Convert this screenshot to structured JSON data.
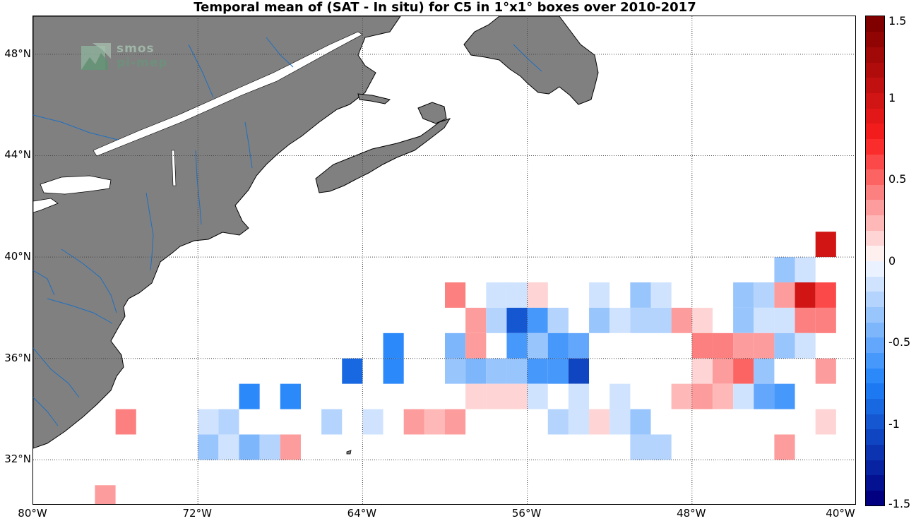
{
  "title": "Temporal mean of (SAT - In situ) for C5 in 1°x1° boxes over 2010-2017",
  "logo": {
    "line1": "smos",
    "line2": "pi-mep"
  },
  "map": {
    "lon_range": [
      -80,
      -40
    ],
    "lat_range": [
      30.2,
      49.5
    ],
    "land_color": "#808080",
    "river_color": "#1f6fc0",
    "grid_style": "dotted",
    "lat_labels": [
      {
        "lat": 48,
        "text": "48°N"
      },
      {
        "lat": 44,
        "text": "44°N"
      },
      {
        "lat": 40,
        "text": "40°N"
      },
      {
        "lat": 36,
        "text": "36°N"
      },
      {
        "lat": 32,
        "text": "32°N"
      }
    ],
    "lon_labels": [
      {
        "lon": -80,
        "text": "80°W"
      },
      {
        "lon": -72,
        "text": "72°W"
      },
      {
        "lon": -64,
        "text": "64°W"
      },
      {
        "lon": -56,
        "text": "56°W"
      },
      {
        "lon": -48,
        "text": "48°W"
      },
      {
        "lon": -40,
        "text": "40°W"
      }
    ],
    "cells": [
      {
        "lon": -41,
        "lat": 41,
        "value": 0.95
      },
      {
        "lon": -43,
        "lat": 40,
        "value": -0.3
      },
      {
        "lon": -42,
        "lat": 40,
        "value": -0.1
      },
      {
        "lon": -59,
        "lat": 39,
        "value": 0.4
      },
      {
        "lon": -57,
        "lat": 39,
        "value": -0.1
      },
      {
        "lon": -56,
        "lat": 39,
        "value": -0.1
      },
      {
        "lon": -55,
        "lat": 39,
        "value": 0.15
      },
      {
        "lon": -52,
        "lat": 39,
        "value": -0.1
      },
      {
        "lon": -50,
        "lat": 39,
        "value": -0.3
      },
      {
        "lon": -49,
        "lat": 39,
        "value": -0.1
      },
      {
        "lon": -45,
        "lat": 39,
        "value": -0.35
      },
      {
        "lon": -44,
        "lat": 39,
        "value": -0.25
      },
      {
        "lon": -43,
        "lat": 39,
        "value": 0.35
      },
      {
        "lon": -42,
        "lat": 39,
        "value": 0.95
      },
      {
        "lon": -41,
        "lat": 39,
        "value": 0.6
      },
      {
        "lon": -58,
        "lat": 38,
        "value": 0.3
      },
      {
        "lon": -57,
        "lat": 38,
        "value": -0.25
      },
      {
        "lon": -56,
        "lat": 38,
        "value": -1.0
      },
      {
        "lon": -55,
        "lat": 38,
        "value": -0.6
      },
      {
        "lon": -54,
        "lat": 38,
        "value": -0.25
      },
      {
        "lon": -52,
        "lat": 38,
        "value": -0.3
      },
      {
        "lon": -51,
        "lat": 38,
        "value": -0.1
      },
      {
        "lon": -50,
        "lat": 38,
        "value": -0.2
      },
      {
        "lon": -49,
        "lat": 38,
        "value": -0.2
      },
      {
        "lon": -48,
        "lat": 38,
        "value": 0.3
      },
      {
        "lon": -47,
        "lat": 38,
        "value": 0.15
      },
      {
        "lon": -45,
        "lat": 38,
        "value": -0.35
      },
      {
        "lon": -44,
        "lat": 38,
        "value": -0.1
      },
      {
        "lon": -43,
        "lat": 38,
        "value": -0.1
      },
      {
        "lon": -42,
        "lat": 38,
        "value": 0.45
      },
      {
        "lon": -41,
        "lat": 38,
        "value": 0.45
      },
      {
        "lon": -62,
        "lat": 37,
        "value": -0.7
      },
      {
        "lon": -59,
        "lat": 37,
        "value": -0.45
      },
      {
        "lon": -58,
        "lat": 37,
        "value": 0.3
      },
      {
        "lon": -56,
        "lat": 37,
        "value": -0.6
      },
      {
        "lon": -55,
        "lat": 37,
        "value": -0.3
      },
      {
        "lon": -54,
        "lat": 37,
        "value": -0.6
      },
      {
        "lon": -53,
        "lat": 37,
        "value": -0.5
      },
      {
        "lon": -47,
        "lat": 37,
        "value": 0.45
      },
      {
        "lon": -46,
        "lat": 37,
        "value": 0.45
      },
      {
        "lon": -45,
        "lat": 37,
        "value": 0.35
      },
      {
        "lon": -44,
        "lat": 37,
        "value": 0.35
      },
      {
        "lon": -43,
        "lat": 37,
        "value": -0.35
      },
      {
        "lon": -42,
        "lat": 37,
        "value": -0.1
      },
      {
        "lon": -64,
        "lat": 36,
        "value": -0.9
      },
      {
        "lon": -62,
        "lat": 36,
        "value": -0.7
      },
      {
        "lon": -59,
        "lat": 36,
        "value": -0.3
      },
      {
        "lon": -58,
        "lat": 36,
        "value": -0.45
      },
      {
        "lon": -57,
        "lat": 36,
        "value": -0.35
      },
      {
        "lon": -56,
        "lat": 36,
        "value": -0.35
      },
      {
        "lon": -55,
        "lat": 36,
        "value": -0.6
      },
      {
        "lon": -54,
        "lat": 36,
        "value": -0.6
      },
      {
        "lon": -53,
        "lat": 36,
        "value": -1.1
      },
      {
        "lon": -47,
        "lat": 36,
        "value": 0.15
      },
      {
        "lon": -46,
        "lat": 36,
        "value": 0.3
      },
      {
        "lon": -45,
        "lat": 36,
        "value": 0.55
      },
      {
        "lon": -44,
        "lat": 36,
        "value": -0.35
      },
      {
        "lon": -41,
        "lat": 36,
        "value": 0.3
      },
      {
        "lon": -69,
        "lat": 35,
        "value": -0.75
      },
      {
        "lon": -67,
        "lat": 35,
        "value": -0.75
      },
      {
        "lon": -58,
        "lat": 35,
        "value": 0.15
      },
      {
        "lon": -57,
        "lat": 35,
        "value": 0.15
      },
      {
        "lon": -56,
        "lat": 35,
        "value": 0.15
      },
      {
        "lon": -55,
        "lat": 35,
        "value": -0.1
      },
      {
        "lon": -53,
        "lat": 35,
        "value": -0.1
      },
      {
        "lon": -51,
        "lat": 35,
        "value": -0.1
      },
      {
        "lon": -48,
        "lat": 35,
        "value": 0.2
      },
      {
        "lon": -47,
        "lat": 35,
        "value": 0.35
      },
      {
        "lon": -46,
        "lat": 35,
        "value": 0.2
      },
      {
        "lon": -45,
        "lat": 35,
        "value": -0.1
      },
      {
        "lon": -44,
        "lat": 35,
        "value": -0.5
      },
      {
        "lon": -43,
        "lat": 35,
        "value": -0.65
      },
      {
        "lon": -75,
        "lat": 34,
        "value": 0.45
      },
      {
        "lon": -71,
        "lat": 34,
        "value": -0.1
      },
      {
        "lon": -70,
        "lat": 34,
        "value": -0.25
      },
      {
        "lon": -65,
        "lat": 34,
        "value": -0.25
      },
      {
        "lon": -63,
        "lat": 34,
        "value": -0.1
      },
      {
        "lon": -61,
        "lat": 34,
        "value": 0.3
      },
      {
        "lon": -60,
        "lat": 34,
        "value": 0.2
      },
      {
        "lon": -59,
        "lat": 34,
        "value": 0.3
      },
      {
        "lon": -54,
        "lat": 34,
        "value": -0.25
      },
      {
        "lon": -53,
        "lat": 34,
        "value": -0.1
      },
      {
        "lon": -52,
        "lat": 34,
        "value": 0.15
      },
      {
        "lon": -51,
        "lat": 34,
        "value": -0.1
      },
      {
        "lon": -50,
        "lat": 34,
        "value": -0.35
      },
      {
        "lon": -41,
        "lat": 34,
        "value": 0.15
      },
      {
        "lon": -71,
        "lat": 33,
        "value": -0.3
      },
      {
        "lon": -70,
        "lat": 33,
        "value": -0.1
      },
      {
        "lon": -69,
        "lat": 33,
        "value": -0.45
      },
      {
        "lon": -68,
        "lat": 33,
        "value": -0.25
      },
      {
        "lon": -67,
        "lat": 33,
        "value": 0.3
      },
      {
        "lon": -50,
        "lat": 33,
        "value": -0.25
      },
      {
        "lon": -49,
        "lat": 33,
        "value": -0.25
      },
      {
        "lon": -43,
        "lat": 33,
        "value": 0.35
      },
      {
        "lon": -76,
        "lat": 31,
        "value": 0.3
      }
    ]
  },
  "colorbar": {
    "range": [
      -1.5,
      1.5
    ],
    "steps": 32,
    "ticks": [
      {
        "value": 1.5,
        "text": "1.5"
      },
      {
        "value": 1.0,
        "text": "1"
      },
      {
        "value": 0.5,
        "text": "0.5"
      },
      {
        "value": 0.0,
        "text": "0"
      },
      {
        "value": -0.5,
        "text": "-0.5"
      },
      {
        "value": -1.0,
        "text": "-1"
      },
      {
        "value": -1.5,
        "text": "-1.5"
      }
    ]
  }
}
